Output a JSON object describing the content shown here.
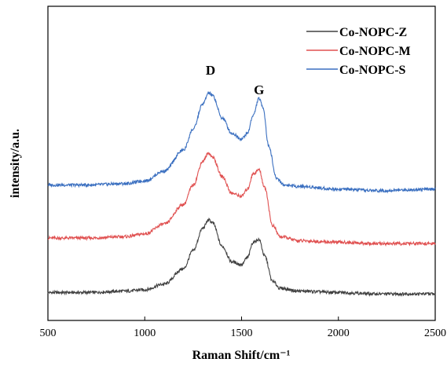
{
  "chart_data": {
    "type": "line",
    "xlabel": "Raman Shift/cm⁻¹",
    "ylabel": "intensity/a.u.",
    "xlim": [
      500,
      2500
    ],
    "xticks": [
      500,
      1000,
      1500,
      2000,
      2500
    ],
    "y_ticks_shown": false,
    "legend_position": "top-right",
    "annotations": [
      {
        "text": "D",
        "x": 1340
      },
      {
        "text": "G",
        "x": 1590
      }
    ],
    "series": [
      {
        "name": "Co-NOPC-Z",
        "color": "#404040",
        "x": [
          500,
          700,
          900,
          1000,
          1100,
          1200,
          1250,
          1300,
          1330,
          1350,
          1400,
          1450,
          1500,
          1530,
          1560,
          1590,
          1620,
          1660,
          1700,
          1800,
          2000,
          2200,
          2500
        ],
        "y": [
          0.0,
          0.0,
          0.01,
          0.02,
          0.06,
          0.17,
          0.3,
          0.46,
          0.52,
          0.5,
          0.33,
          0.22,
          0.2,
          0.25,
          0.36,
          0.38,
          0.26,
          0.08,
          0.03,
          0.01,
          0.0,
          -0.01,
          -0.01
        ]
      },
      {
        "name": "Co-NOPC-M",
        "color": "#e05050",
        "x": [
          500,
          700,
          900,
          1000,
          1100,
          1200,
          1250,
          1300,
          1330,
          1350,
          1400,
          1450,
          1500,
          1530,
          1560,
          1590,
          1620,
          1660,
          1700,
          1800,
          2000,
          2200,
          2500
        ],
        "y": [
          0.39,
          0.39,
          0.4,
          0.42,
          0.49,
          0.63,
          0.77,
          0.94,
          1.0,
          0.97,
          0.83,
          0.71,
          0.69,
          0.74,
          0.85,
          0.88,
          0.75,
          0.48,
          0.4,
          0.37,
          0.36,
          0.35,
          0.35
        ]
      },
      {
        "name": "Co-NOPC-S",
        "color": "#3a6fc0",
        "x": [
          500,
          700,
          900,
          1000,
          1100,
          1200,
          1250,
          1300,
          1330,
          1350,
          1400,
          1450,
          1500,
          1530,
          1560,
          1590,
          1610,
          1640,
          1680,
          1720,
          1800,
          2000,
          2200,
          2500
        ],
        "y": [
          0.77,
          0.77,
          0.78,
          0.8,
          0.87,
          1.02,
          1.17,
          1.35,
          1.43,
          1.41,
          1.25,
          1.14,
          1.1,
          1.14,
          1.27,
          1.39,
          1.33,
          1.05,
          0.82,
          0.77,
          0.76,
          0.74,
          0.73,
          0.74
        ]
      }
    ]
  }
}
